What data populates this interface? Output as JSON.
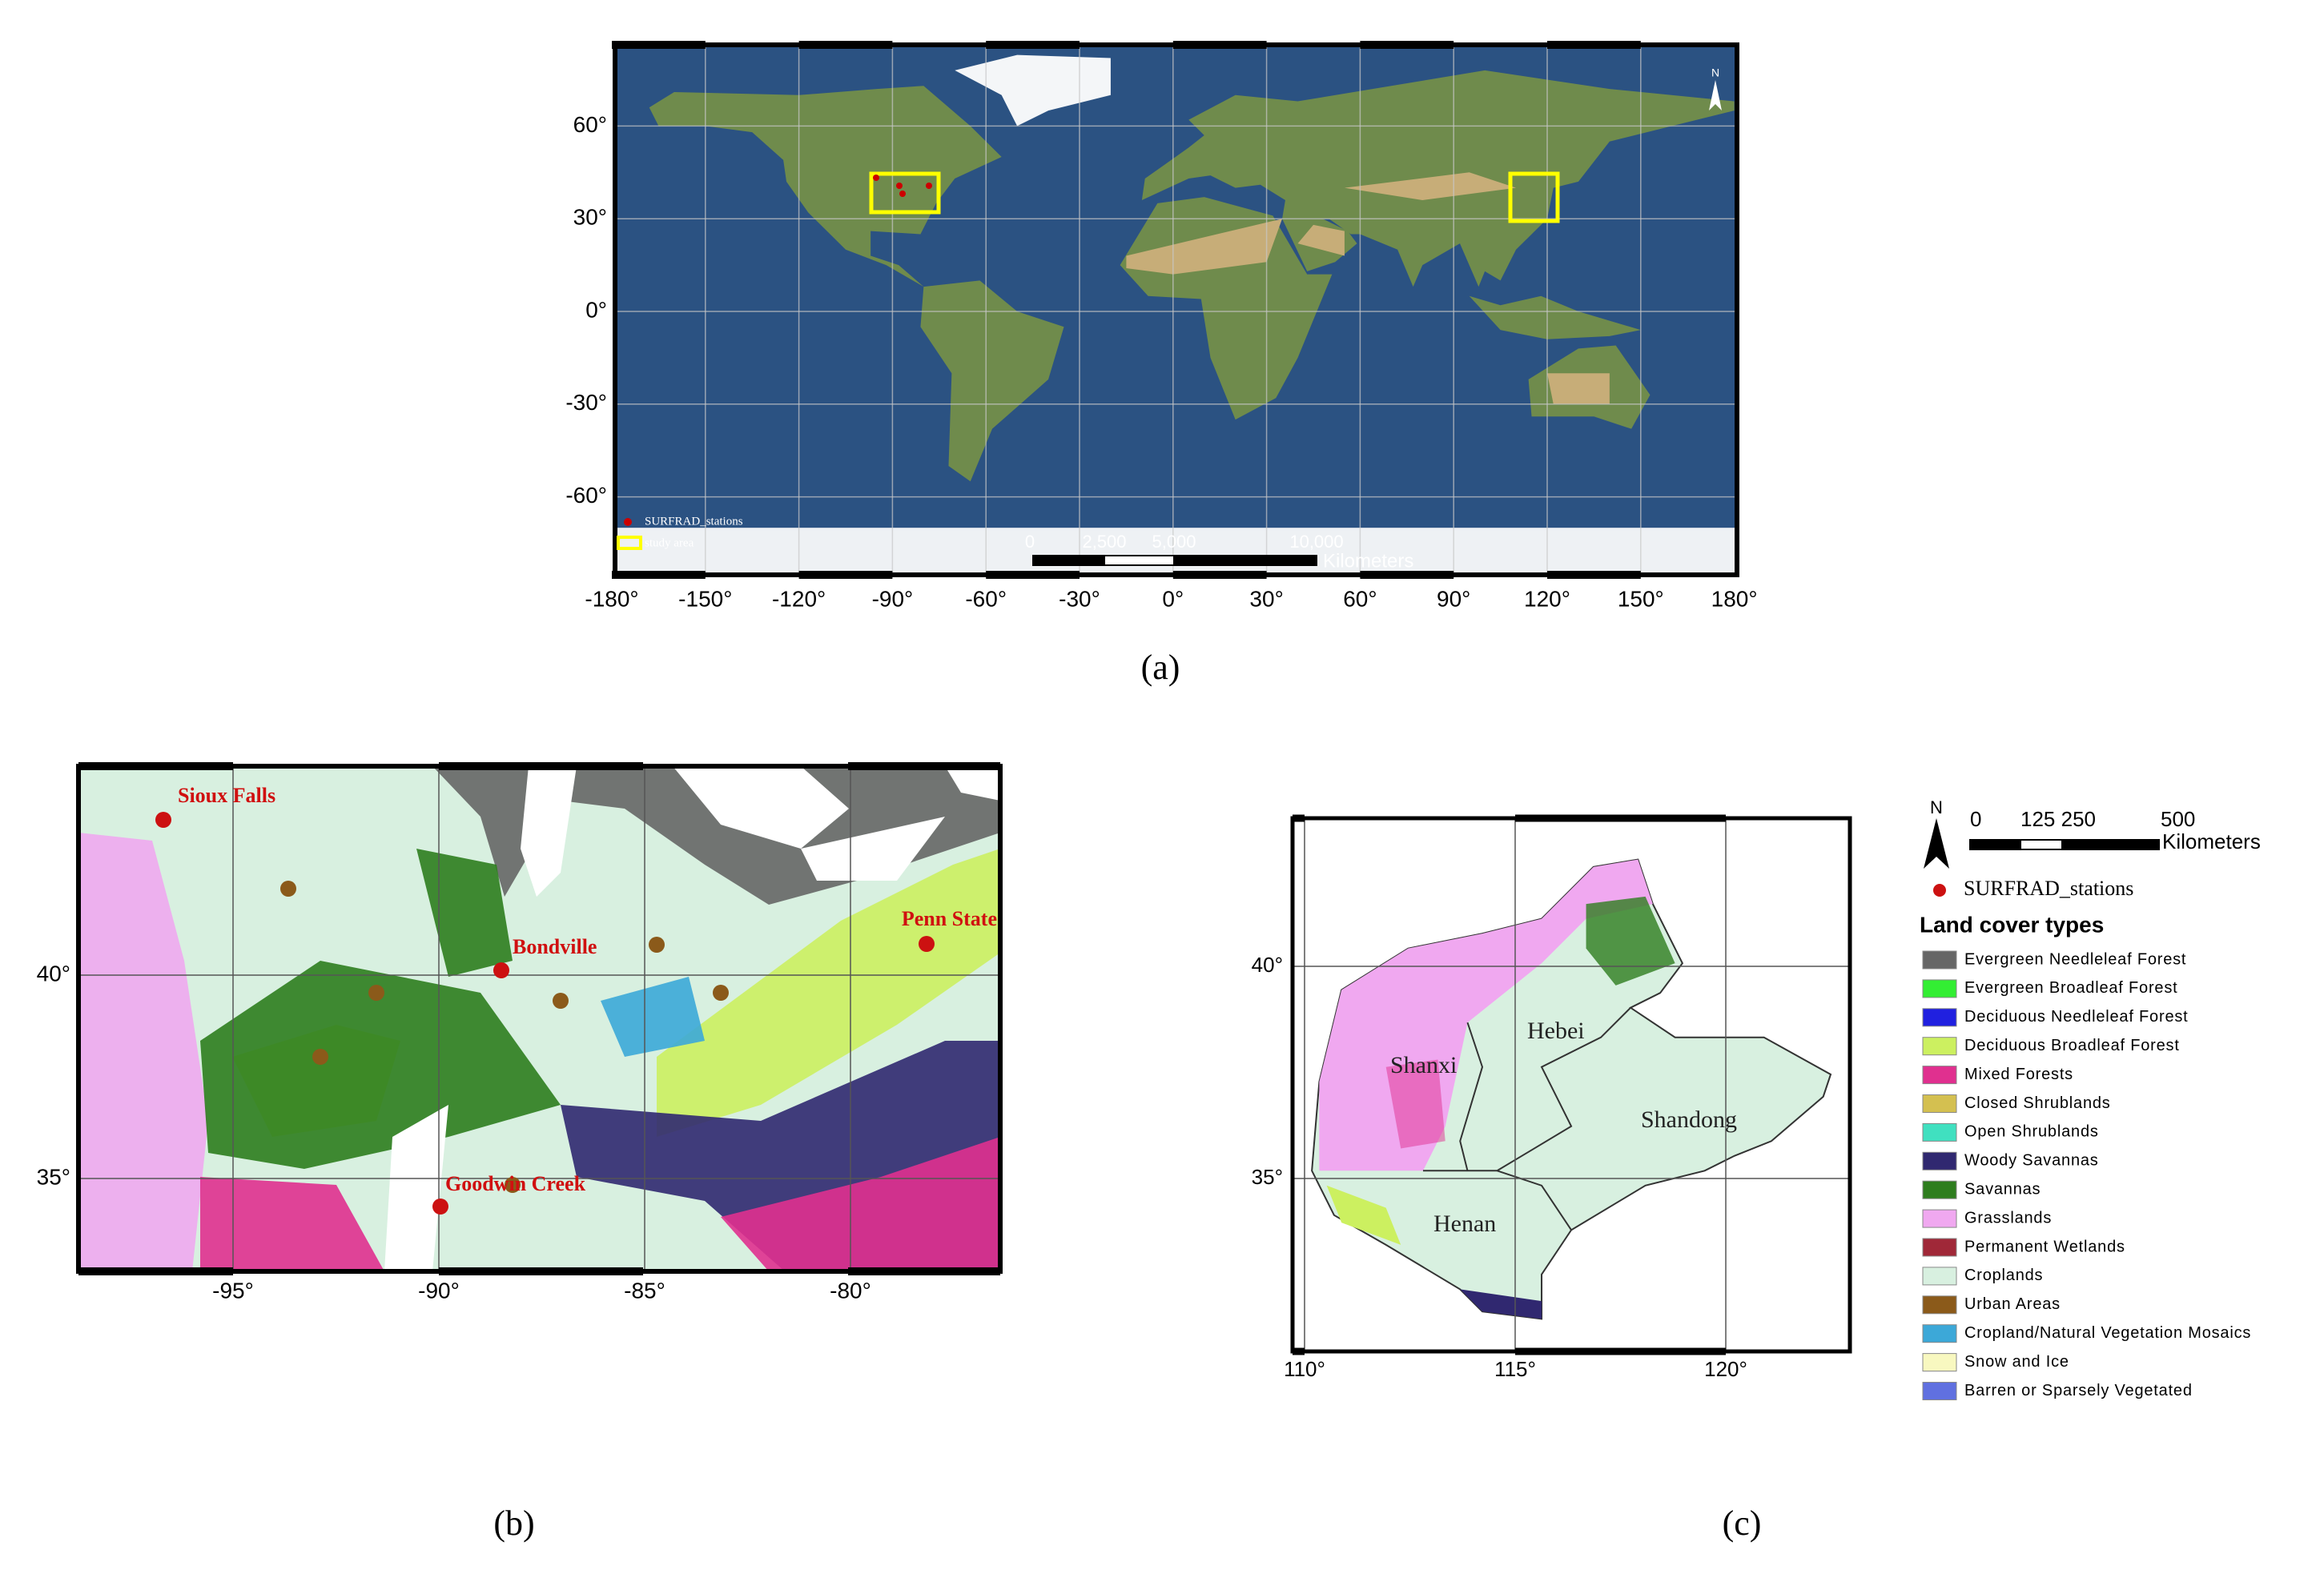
{
  "panel_a": {
    "caption": "(a)",
    "lat_labels": [
      "60°",
      "30°",
      "0°",
      "-30°",
      "-60°"
    ],
    "lon_labels": [
      "-180°",
      "-150°",
      "-120°",
      "-90°",
      "-60°",
      "-30°",
      "0°",
      "30°",
      "60°",
      "90°",
      "120°",
      "150°",
      "180°"
    ],
    "north": "N",
    "legend": {
      "stations": "SURFRAD_stations",
      "study_area": "study area"
    },
    "scale_bar": {
      "ticks": [
        "0",
        "2,500",
        "5,000",
        "10,000"
      ],
      "unit": "Kilometers"
    }
  },
  "panel_b": {
    "caption": "(b)",
    "lat_labels": [
      "40°",
      "35°"
    ],
    "lon_labels": [
      "-95°",
      "-90°",
      "-85°",
      "-80°"
    ],
    "stations": [
      "Sioux Falls",
      "Bondville",
      "Penn State",
      "Goodwin Creek"
    ]
  },
  "panel_c": {
    "caption": "(c)",
    "lat_labels": [
      "40°",
      "35°"
    ],
    "lon_labels": [
      "110°",
      "115°",
      "120°"
    ],
    "provinces": [
      "Shanxi",
      "Hebei",
      "Shandong",
      "Henan"
    ]
  },
  "legend": {
    "north": "N",
    "scale_ticks": [
      "0",
      "125 250",
      "500"
    ],
    "scale_unit": "Kilometers",
    "stations": "SURFRAD_stations",
    "title": "Land cover types",
    "classes": [
      {
        "label": "Evergreen Needleleaf Forest",
        "color": "#666666"
      },
      {
        "label": "Evergreen Broadleaf Forest",
        "color": "#33ee33"
      },
      {
        "label": "Deciduous Needleleaf Forest",
        "color": "#2020e0"
      },
      {
        "label": "Deciduous Broadleaf Forest",
        "color": "#ccf060"
      },
      {
        "label": "Mixed Forests",
        "color": "#e0308f"
      },
      {
        "label": "Closed Shrublands",
        "color": "#d4c050"
      },
      {
        "label": "Open Shrublands",
        "color": "#40e0c0"
      },
      {
        "label": "Woody Savannas",
        "color": "#302870"
      },
      {
        "label": "Savannas",
        "color": "#2e7d1e"
      },
      {
        "label": "Grasslands",
        "color": "#f0a8f0"
      },
      {
        "label": "Permanent Wetlands",
        "color": "#a02838"
      },
      {
        "label": "Croplands",
        "color": "#d8f0e0"
      },
      {
        "label": "Urban Areas",
        "color": "#8b5a1a"
      },
      {
        "label": "Cropland/Natural Vegetation Mosaics",
        "color": "#3ca8d8"
      },
      {
        "label": "Snow and Ice",
        "color": "#f8f8c0"
      },
      {
        "label": "Barren or Sparsely Vegetated",
        "color": "#6070e0"
      }
    ]
  }
}
